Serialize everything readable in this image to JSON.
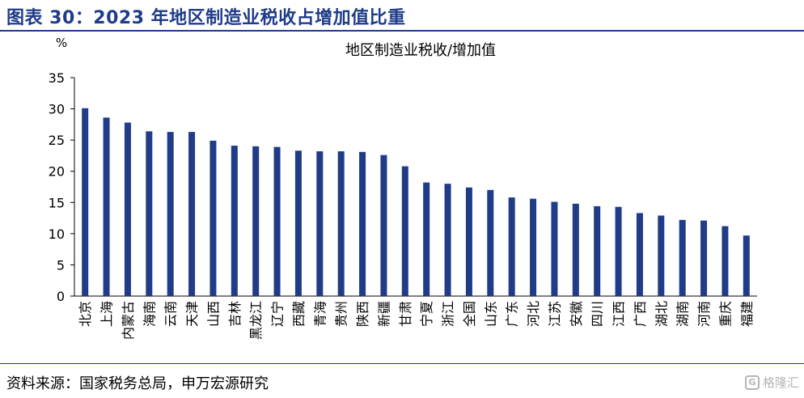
{
  "figure_title": "图表 30：2023 年地区制造业税收占增加值比重",
  "source_text": "资料来源：国家税务总局，申万宏源研究",
  "watermark": {
    "text": "格隆汇",
    "icon": "logo-icon"
  },
  "colors": {
    "title": "#1F3C88",
    "bar": "#1F3C88",
    "rule": "#1F3C88"
  },
  "chart_data": {
    "type": "bar",
    "title": "地区制造业税收/增加值",
    "ylabel": "%",
    "ylim": [
      0,
      35
    ],
    "yticks": [
      0,
      5,
      10,
      15,
      20,
      25,
      30,
      35
    ],
    "grid": false,
    "categories": [
      "北京",
      "上海",
      "内蒙古",
      "海南",
      "云南",
      "天津",
      "山西",
      "吉林",
      "黑龙江",
      "辽宁",
      "西藏",
      "青海",
      "贵州",
      "陕西",
      "新疆",
      "甘肃",
      "宁夏",
      "浙江",
      "全国",
      "山东",
      "广东",
      "河北",
      "江苏",
      "安徽",
      "四川",
      "江西",
      "广西",
      "湖北",
      "湖南",
      "河南",
      "重庆",
      "福建"
    ],
    "values": [
      30.1,
      28.6,
      27.8,
      26.4,
      26.3,
      26.3,
      24.9,
      24.1,
      24.0,
      23.9,
      23.3,
      23.2,
      23.2,
      23.1,
      22.6,
      20.8,
      18.2,
      18.0,
      17.4,
      17.0,
      15.8,
      15.6,
      15.1,
      14.8,
      14.4,
      14.3,
      13.3,
      12.9,
      12.2,
      12.1,
      11.2,
      9.7
    ]
  }
}
